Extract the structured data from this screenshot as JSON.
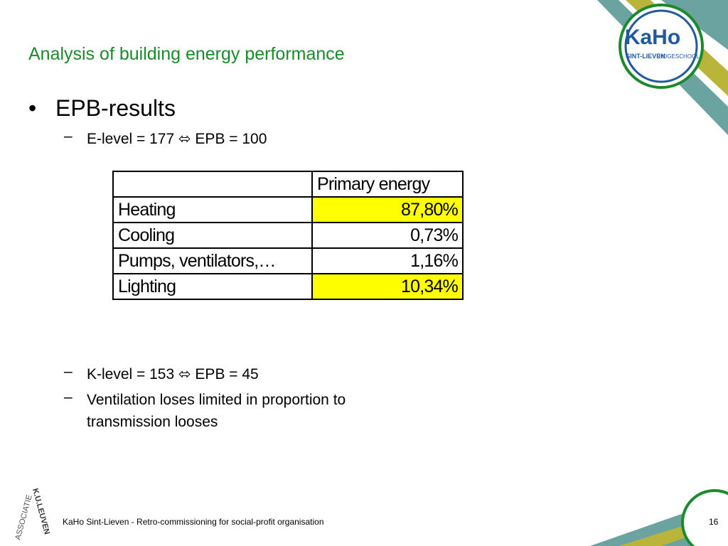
{
  "title": "Analysis of building energy performance",
  "bullet": "EPB-results",
  "sub_bullets_top": [
    "E-level = 177 ⬄ EPB = 100"
  ],
  "table": {
    "header": "Primary energy",
    "rows": [
      [
        "Heating",
        "87,80%"
      ],
      [
        "Cooling",
        "0,73%"
      ],
      [
        "Pumps, ventilators,…",
        "1,16%"
      ],
      [
        "Lighting",
        "10,34%"
      ]
    ],
    "highlighted_rows": [
      0,
      3
    ],
    "highlight_color": "#ffff00"
  },
  "sub_bullets_bottom": [
    "K-level = 153 ⬄ EPB = 45",
    "Ventilation loses limited in proportion to transmission looses"
  ],
  "logo": {
    "name": "KaHo",
    "line1": "SINT-LIEVEN",
    "line2": "HOGESCHOOL"
  },
  "side_logo": {
    "top": "ASSOCIATIE",
    "bottom": "K.U.LEUVEN"
  },
  "footer": "KaHo Sint-Lieven - Retro-commissioning for social-profit organisation",
  "page_number": 16
}
